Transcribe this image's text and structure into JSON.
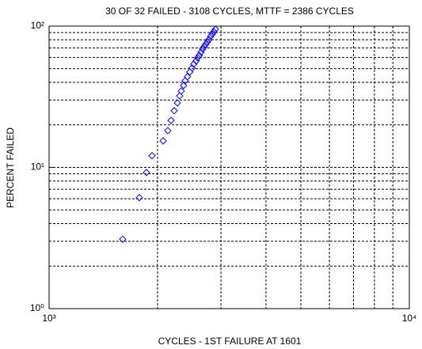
{
  "chart_data": {
    "type": "scatter",
    "title": "30 OF 32 FAILED - 3108 CYCLES, MTTF = 2386 CYCLES",
    "xlabel": "CYCLES - 1ST FAILURE AT 1601",
    "ylabel": "PERCENT FAILED",
    "xscale": "log",
    "yscale": "log",
    "xlim": [
      1000,
      10000
    ],
    "ylim": [
      1,
      100
    ],
    "xticks": [
      {
        "value": 1000,
        "label": "10³"
      },
      {
        "value": 10000,
        "label": "10⁴"
      }
    ],
    "yticks": [
      {
        "value": 1,
        "label": "10⁰"
      },
      {
        "value": 10,
        "label": "10¹"
      },
      {
        "value": 100,
        "label": "10²"
      }
    ],
    "x_minor_ticks": [
      2000,
      3000,
      4000,
      5000,
      6000,
      7000,
      8000,
      9000
    ],
    "y_minor_ticks": [
      2,
      3,
      4,
      5,
      6,
      7,
      8,
      9,
      20,
      30,
      40,
      50,
      60,
      70,
      80,
      90
    ],
    "grid": true,
    "color": "#0000ff",
    "marker": "diamond",
    "x": [
      1601,
      1780,
      1863,
      1931,
      2073,
      2136,
      2180,
      2225,
      2270,
      2304,
      2327,
      2362,
      2386,
      2421,
      2457,
      2495,
      2520,
      2560,
      2585,
      2612,
      2640,
      2667,
      2694,
      2722,
      2750,
      2778,
      2808,
      2837,
      2866,
      2896
    ],
    "values": [
      3.1,
      6.1,
      9.2,
      12.1,
      15.4,
      18.2,
      21.5,
      25.2,
      28.6,
      32.1,
      34.7,
      38.0,
      41.0,
      43.8,
      47.3,
      50.5,
      53.8,
      56.7,
      59.7,
      62.1,
      65.3,
      68.8,
      71.5,
      74.3,
      77.3,
      80.3,
      84.5,
      87.9,
      91.4,
      95.0
    ]
  }
}
